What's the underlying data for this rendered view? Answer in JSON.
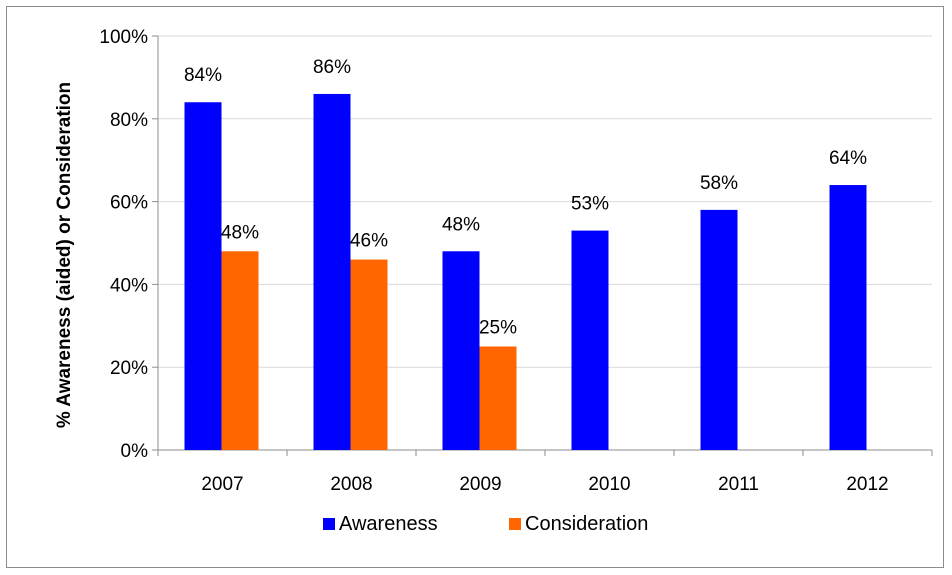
{
  "chart_data": {
    "type": "bar",
    "ylabel": "% Awareness (aided) or Consideration",
    "xlabel": "",
    "ylim": [
      0,
      100
    ],
    "y_ticks": [
      "0%",
      "20%",
      "40%",
      "60%",
      "80%",
      "100%"
    ],
    "y_tick_values": [
      0,
      20,
      40,
      60,
      80,
      100
    ],
    "categories": [
      "2007",
      "2008",
      "2009",
      "2010",
      "2011",
      "2012"
    ],
    "series": [
      {
        "name": "Awareness",
        "color": "#0000ff",
        "values": [
          84,
          86,
          48,
          53,
          58,
          64
        ],
        "labels": [
          "84%",
          "86%",
          "48%",
          "53%",
          "58%",
          "64%"
        ]
      },
      {
        "name": "Consideration",
        "color": "#ff6600",
        "values": [
          48,
          46,
          25,
          null,
          null,
          null
        ],
        "labels": [
          "48%",
          "46%",
          "25%",
          "",
          "",
          ""
        ]
      }
    ],
    "grid": true,
    "legend_position": "bottom"
  }
}
